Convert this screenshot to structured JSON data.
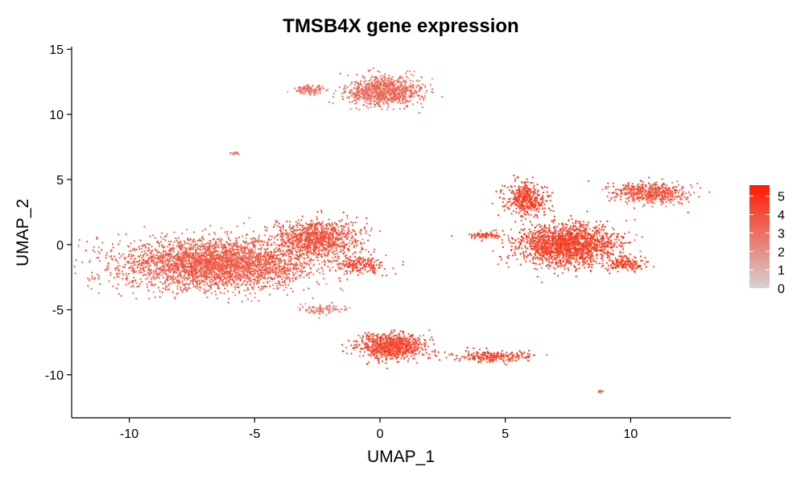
{
  "chart_data": {
    "type": "scatter",
    "title": "TMSB4X gene expression",
    "xlabel": "UMAP_1",
    "ylabel": "UMAP_2",
    "xlim": [
      -12.3,
      14.0
    ],
    "ylim": [
      -13.3,
      15.2
    ],
    "x_ticks": [
      -10,
      -5,
      0,
      5,
      10
    ],
    "y_ticks": [
      -10,
      -5,
      0,
      5,
      10,
      15
    ],
    "x_tick_labels": [
      "-10",
      "-5",
      "0",
      "5",
      "10"
    ],
    "y_tick_labels": [
      "-10",
      "-5",
      "0",
      "5",
      "10",
      "15"
    ],
    "grid": false,
    "legend": {
      "placement": "right",
      "type": "colorbar",
      "range": [
        0,
        5.6
      ],
      "ticks": [
        0,
        1,
        2,
        3,
        4,
        5
      ],
      "tick_labels": [
        "0",
        "1",
        "2",
        "3",
        "4",
        "5"
      ],
      "low_color": "#d3d3d3",
      "high_color": "#ff1a00"
    },
    "point_color_low": "#d3d3d3",
    "point_color_high": "#ff2000",
    "clusters": [
      {
        "center": [
          -6.5,
          -1.5
        ],
        "spread": [
          3.2,
          1.6
        ],
        "count": 3200,
        "expression": 3.6
      },
      {
        "center": [
          -2.5,
          0.5
        ],
        "spread": [
          1.4,
          1.2
        ],
        "count": 900,
        "expression": 4.0
      },
      {
        "center": [
          -0.8,
          -1.5
        ],
        "spread": [
          0.9,
          0.6
        ],
        "count": 200,
        "expression": 4.4
      },
      {
        "center": [
          0.2,
          11.8
        ],
        "spread": [
          1.2,
          0.9
        ],
        "count": 900,
        "expression": 3.2
      },
      {
        "center": [
          -2.8,
          11.9
        ],
        "spread": [
          0.5,
          0.3
        ],
        "count": 120,
        "expression": 2.6
      },
      {
        "center": [
          -5.8,
          7.0
        ],
        "spread": [
          0.15,
          0.12
        ],
        "count": 15,
        "expression": 3.0
      },
      {
        "center": [
          7.5,
          0.0
        ],
        "spread": [
          1.6,
          1.3
        ],
        "count": 1800,
        "expression": 4.4
      },
      {
        "center": [
          5.8,
          3.5
        ],
        "spread": [
          0.7,
          1.0
        ],
        "count": 400,
        "expression": 4.6
      },
      {
        "center": [
          10.8,
          4.0
        ],
        "spread": [
          1.2,
          0.7
        ],
        "count": 500,
        "expression": 4.0
      },
      {
        "center": [
          9.8,
          -1.5
        ],
        "spread": [
          0.6,
          0.5
        ],
        "count": 150,
        "expression": 4.5
      },
      {
        "center": [
          4.2,
          0.7
        ],
        "spread": [
          0.6,
          0.2
        ],
        "count": 80,
        "expression": 4.5
      },
      {
        "center": [
          0.5,
          -7.8
        ],
        "spread": [
          1.1,
          0.8
        ],
        "count": 900,
        "expression": 4.2
      },
      {
        "center": [
          -2.2,
          -5.0
        ],
        "spread": [
          0.8,
          0.3
        ],
        "count": 100,
        "expression": 2.6
      },
      {
        "center": [
          4.5,
          -8.6
        ],
        "spread": [
          1.3,
          0.35
        ],
        "count": 220,
        "expression": 4.5
      },
      {
        "center": [
          8.8,
          -11.3
        ],
        "spread": [
          0.12,
          0.08
        ],
        "count": 12,
        "expression": 4.0
      }
    ]
  }
}
